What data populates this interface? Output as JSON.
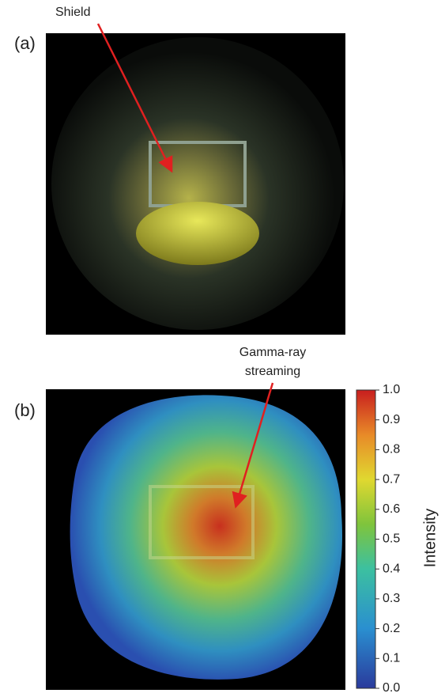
{
  "panels": [
    {
      "label": "(a)",
      "annotation": [
        "Shield"
      ]
    },
    {
      "label": "(b)",
      "annotation": [
        "Gamma-ray",
        "streaming"
      ]
    }
  ],
  "colorbar": {
    "label": "Intensity",
    "lim": [
      0,
      1
    ],
    "ticks": [
      {
        "value": 0,
        "label": "0.0"
      },
      {
        "value": 0.1,
        "label": "0.1"
      },
      {
        "value": 0.2,
        "label": "0.2"
      },
      {
        "value": 0.3,
        "label": "0.3"
      },
      {
        "value": 0.4,
        "label": "0.4"
      },
      {
        "value": 0.5,
        "label": "0.5"
      },
      {
        "value": 0.6,
        "label": "0.6"
      },
      {
        "value": 0.7,
        "label": "0.7"
      },
      {
        "value": 0.8,
        "label": "0.8"
      },
      {
        "value": 0.9,
        "label": "0.9"
      },
      {
        "value": 1,
        "label": "1.0"
      }
    ]
  }
}
